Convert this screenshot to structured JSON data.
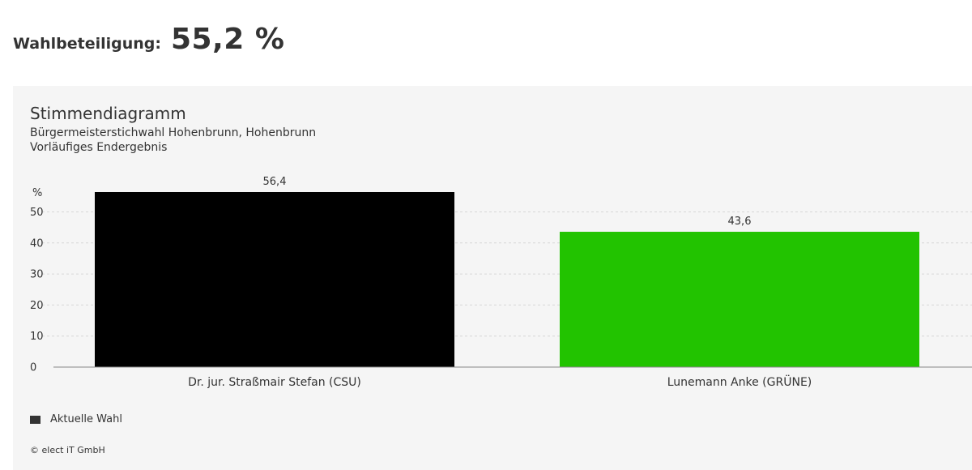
{
  "turnout": {
    "label": "Wahlbeteiligung:",
    "value": "55,2 %"
  },
  "chart_data": {
    "type": "bar",
    "title": "Stimmendiagramm",
    "subtitle_lines": [
      "Bürgermeisterstichwahl Hohenbrunn, Hohenbrunn",
      "Vorläufiges Endergebnis"
    ],
    "ylabel": "%",
    "ylim": [
      0,
      56.4
    ],
    "yticks": [
      0,
      10,
      20,
      30,
      40,
      50
    ],
    "grid": true,
    "categories": [
      "Dr. jur. Straßmair Stefan (CSU)",
      "Lunemann Anke (GRÜNE)"
    ],
    "series": [
      {
        "name": "Aktuelle Wahl",
        "values": [
          56.4,
          43.6
        ],
        "value_labels": [
          "56,4",
          "43,6"
        ],
        "colors": [
          "#000000",
          "#22c300"
        ]
      }
    ],
    "legend_position": "bottom-left"
  },
  "legend": {
    "label": "Aktuelle Wahl",
    "swatch_color": "#333333"
  },
  "footer": {
    "copyright": "© elect iT GmbH"
  }
}
